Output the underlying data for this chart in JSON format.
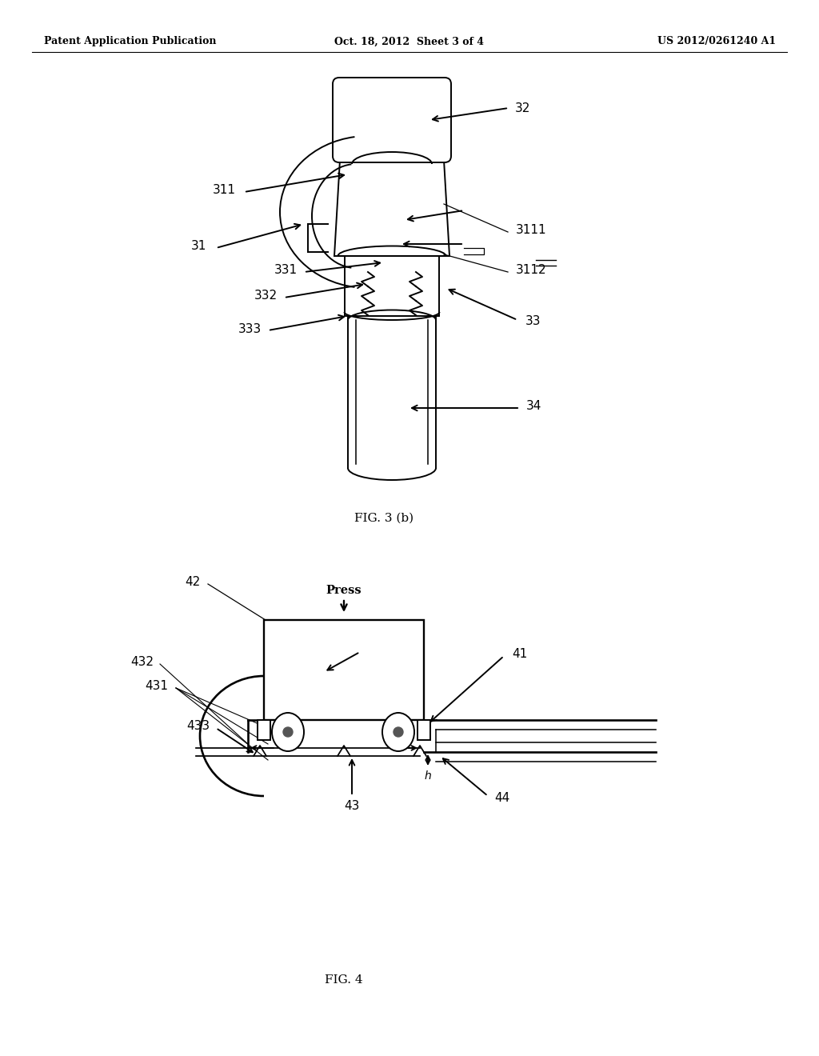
{
  "background_color": "#ffffff",
  "header_left": "Patent Application Publication",
  "header_center": "Oct. 18, 2012  Sheet 3 of 4",
  "header_right": "US 2012/0261240 A1",
  "fig3b_caption": "FIG. 3 (b)",
  "fig4_caption": "FIG. 4",
  "fig4_press_label": "Press"
}
